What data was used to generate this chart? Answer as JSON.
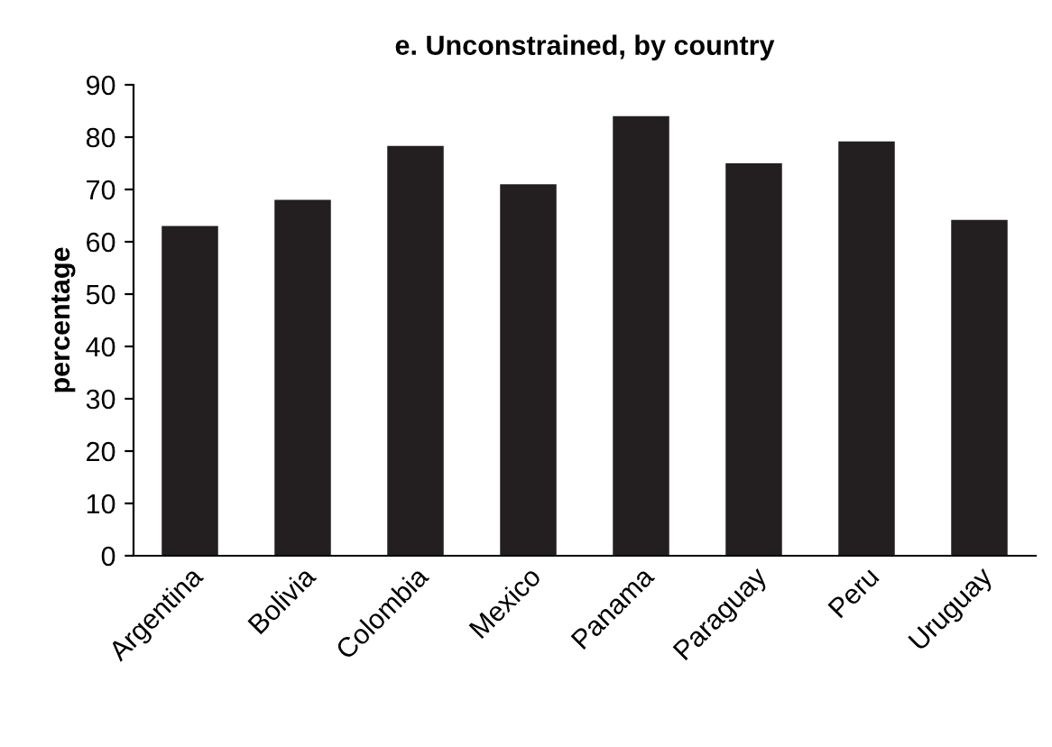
{
  "chart_data": {
    "type": "bar",
    "title": "e. Unconstrained, by country",
    "ylabel": "percentage",
    "categories": [
      "Argentina",
      "Bolivia",
      "Colombia",
      "Mexico",
      "Panama",
      "Paraguay",
      "Peru",
      "Uruguay"
    ],
    "values": [
      63,
      68,
      78.3,
      71,
      84,
      75,
      79.2,
      64.2
    ],
    "color": "#231f20",
    "ylim": [
      0,
      90
    ],
    "yticks": [
      0,
      10,
      20,
      30,
      40,
      50,
      60,
      70,
      80,
      90
    ],
    "grid": false,
    "legend": false
  }
}
